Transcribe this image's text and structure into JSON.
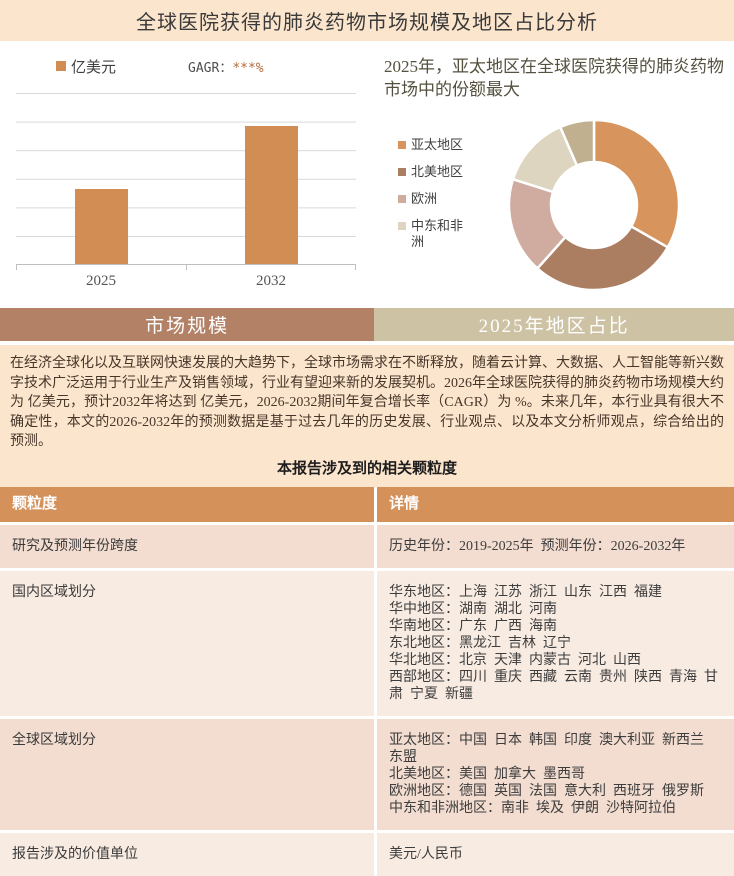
{
  "page": {
    "title": "全球医院获得的肺炎药物市场规模及地区占比分析"
  },
  "tabs": [
    {
      "label": "市场规模"
    },
    {
      "label": "2025年地区占比"
    }
  ],
  "intro": {
    "paragraph": "在经济全球化以及互联网快速发展的大趋势下，全球市场需求在不断释放，随着云计算、大数据、人工智能等新兴数字技术广泛运用于行业生产及销售领域，行业有望迎来新的发展契机。2026年全球医院获得的肺炎药物市场规模大约为 亿美元，预计2032年将达到 亿美元，2026-2032期间年复合增长率（CAGR）为 %。未来几年，本行业具有很大不确定性，本文的2026-2032年的预测数据是基于过去几年的历史发展、行业观点、以及本文分析师观点，综合给出的预测。",
    "heading": "本报告涉及到的相关颗粒度"
  },
  "table": {
    "headers": [
      "颗粒度",
      "详情"
    ],
    "rows": [
      {
        "label": "研究及预测年份跨度",
        "details": [
          "历史年份：2019-2025年  预测年份：2026-2032年"
        ]
      },
      {
        "label": "国内区域划分",
        "details": [
          "华东地区：上海  江苏  浙江  山东  江西  福建",
          "华中地区：湖南  湖北  河南",
          "华南地区：广东  广西  海南",
          "东北地区：黑龙江  吉林  辽宁",
          "华北地区：北京  天津  内蒙古  河北  山西",
          "西部地区：四川  重庆  西藏  云南  贵州  陕西  青海  甘肃  宁夏  新疆"
        ]
      },
      {
        "label": "全球区域划分",
        "details": [
          "亚太地区：中国  日本  韩国  印度  澳大利亚  新西兰  东盟",
          "北美地区：美国  加拿大  墨西哥",
          "欧洲地区：德国  英国  法国  意大利  西班牙  俄罗斯",
          "中东和非洲地区：南非  埃及  伊朗  沙特阿拉伯"
        ]
      },
      {
        "label": "报告涉及的价值单位",
        "details": [
          "美元/人民币"
        ]
      }
    ]
  },
  "chart_data": [
    {
      "type": "bar",
      "series_label": "亿美元",
      "cagr_prefix": "GAGR：",
      "cagr_value": "***%",
      "categories": [
        "2025",
        "2032"
      ],
      "values_masked": true,
      "values_pct_of_axis": [
        44,
        81
      ],
      "bar_color": "#d28d55",
      "ylabel": "",
      "xlabel": "",
      "grid": true,
      "y_tick_labels_visible": false
    },
    {
      "type": "pie",
      "subtype": "donut",
      "title": "2025年，亚太地区在全球医院获得的肺炎药物市场中的份额最大",
      "legend": [
        "亚太地区",
        "北美地区",
        "欧洲",
        "中东和非洲"
      ],
      "legend_position": "left",
      "slices": [
        {
          "name": "亚太地区",
          "share": 33.3,
          "color": "#d7945d"
        },
        {
          "name": "北美地区",
          "share": 28.3,
          "color": "#ab7d61"
        },
        {
          "name": "欧洲",
          "share": 18.3,
          "color": "#cfaba0"
        },
        {
          "name": "中东和非洲",
          "share": 13.6,
          "color": "#ddd5c0"
        },
        {
          "name": "",
          "share": 6.5,
          "color": "#c0b090"
        }
      ]
    }
  ],
  "colors": {
    "banner_bg": "#fce5cd",
    "table_header_bg": "#d4915a",
    "tab_left_bg": "#b38165",
    "tab_right_bg": "#cdc2a3",
    "row_alt_a": "#f3ddd0",
    "row_alt_b": "#f8ebe2",
    "bar_orange": "#d28d55"
  }
}
